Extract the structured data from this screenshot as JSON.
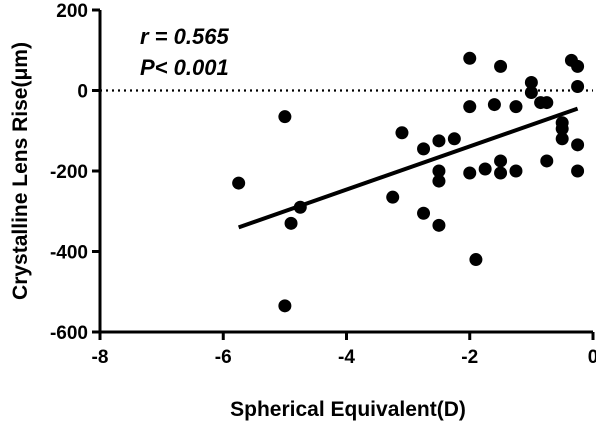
{
  "chart_data": {
    "type": "scatter",
    "title": "",
    "xlabel": "Spherical Equivalent(D)",
    "ylabel": "Crystalline Lens Rise(μm)",
    "xlim": [
      -8,
      0
    ],
    "ylim": [
      -600,
      200
    ],
    "xticks": [
      -8,
      -6,
      -4,
      -2,
      0
    ],
    "yticks": [
      -600,
      -400,
      -200,
      0,
      200
    ],
    "xtick_labels": [
      "-8",
      "-6",
      "-4",
      "-2",
      "0"
    ],
    "ytick_labels": [
      "-600",
      "-400",
      "-200",
      "0",
      "200"
    ],
    "reference_line": {
      "y": 0,
      "style": "dotted"
    },
    "annotations": [
      "r = 0.565",
      "P< 0.001"
    ],
    "grid": false,
    "legend": "none",
    "series": [
      {
        "points": [
          [
            -5.75,
            -230
          ],
          [
            -5.0,
            -65
          ],
          [
            -5.0,
            -535
          ],
          [
            -4.9,
            -330
          ],
          [
            -4.75,
            -290
          ],
          [
            -3.25,
            -265
          ],
          [
            -3.1,
            -105
          ],
          [
            -2.75,
            -145
          ],
          [
            -2.75,
            -305
          ],
          [
            -2.5,
            -125
          ],
          [
            -2.5,
            -200
          ],
          [
            -2.5,
            -225
          ],
          [
            -2.5,
            -335
          ],
          [
            -2.25,
            -120
          ],
          [
            -2.0,
            80
          ],
          [
            -2.0,
            -40
          ],
          [
            -2.0,
            -205
          ],
          [
            -1.9,
            -420
          ],
          [
            -1.75,
            -195
          ],
          [
            -1.6,
            -35
          ],
          [
            -1.5,
            60
          ],
          [
            -1.5,
            -175
          ],
          [
            -1.5,
            -205
          ],
          [
            -1.25,
            -40
          ],
          [
            -1.25,
            -200
          ],
          [
            -1.0,
            20
          ],
          [
            -1.0,
            -5
          ],
          [
            -0.85,
            -30
          ],
          [
            -0.75,
            -30
          ],
          [
            -0.75,
            -175
          ],
          [
            -0.5,
            -80
          ],
          [
            -0.5,
            -95
          ],
          [
            -0.5,
            -120
          ],
          [
            -0.35,
            75
          ],
          [
            -0.25,
            60
          ],
          [
            -0.25,
            10
          ],
          [
            -0.25,
            -135
          ],
          [
            -0.25,
            -200
          ]
        ]
      }
    ],
    "regression_line": {
      "x": [
        -5.75,
        -0.25
      ],
      "y": [
        -340,
        -45
      ]
    },
    "colors": {
      "marker": "#000000",
      "line": "#000000",
      "background": "#ffffff"
    }
  }
}
